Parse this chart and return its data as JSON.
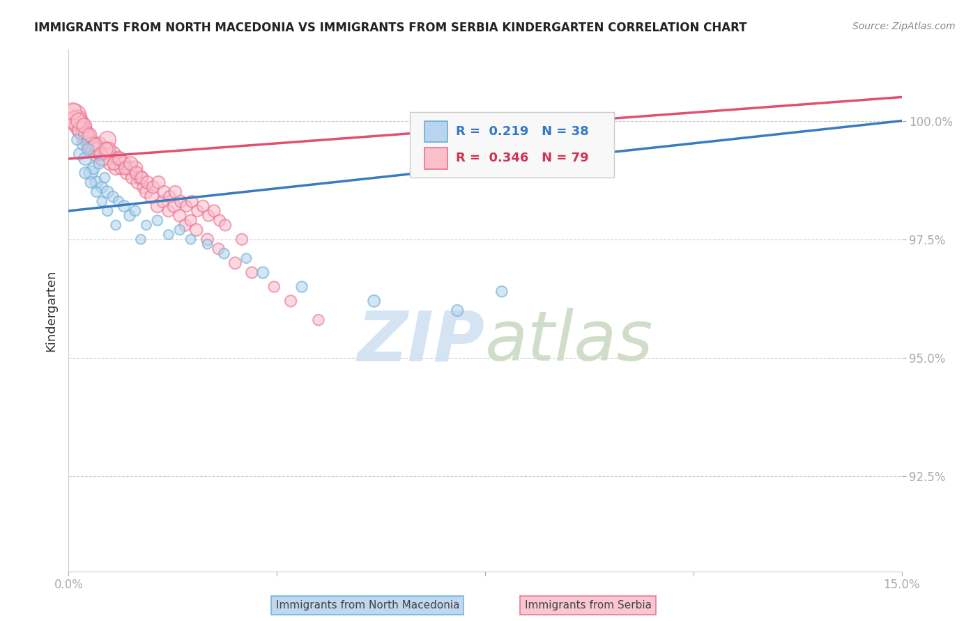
{
  "title": "IMMIGRANTS FROM NORTH MACEDONIA VS IMMIGRANTS FROM SERBIA KINDERGARTEN CORRELATION CHART",
  "source": "Source: ZipAtlas.com",
  "ylabel": "Kindergarten",
  "xlim": [
    0.0,
    15.0
  ],
  "ylim": [
    90.5,
    101.5
  ],
  "yticks": [
    92.5,
    95.0,
    97.5,
    100.0
  ],
  "ytick_labels": [
    "92.5%",
    "95.0%",
    "97.5%",
    "100.0%"
  ],
  "xticks": [
    0.0,
    3.75,
    7.5,
    11.25,
    15.0
  ],
  "xtick_labels": [
    "0.0%",
    "",
    "",
    "",
    "15.0%"
  ],
  "blue_face_color": "#b8d4ee",
  "blue_edge_color": "#6aaed6",
  "pink_face_color": "#f9c0cc",
  "pink_edge_color": "#e87090",
  "blue_line_color": "#3a7bbf",
  "pink_line_color": "#e05070",
  "background_color": "#ffffff",
  "grid_color": "#cccccc",
  "blue_line_x0": 0.0,
  "blue_line_y0": 98.1,
  "blue_line_x1": 15.0,
  "blue_line_y1": 100.0,
  "pink_line_x0": 0.0,
  "pink_line_y0": 99.2,
  "pink_line_x1": 15.0,
  "pink_line_y1": 100.5,
  "blue_scatter_x": [
    0.2,
    0.25,
    0.3,
    0.35,
    0.4,
    0.45,
    0.5,
    0.55,
    0.6,
    0.65,
    0.7,
    0.8,
    0.9,
    1.0,
    1.1,
    1.2,
    1.4,
    1.6,
    1.8,
    2.0,
    2.2,
    2.5,
    2.8,
    3.2,
    3.5,
    4.2,
    5.5,
    7.0,
    7.8,
    9.3,
    0.15,
    0.3,
    0.4,
    0.5,
    0.6,
    0.7,
    0.85,
    1.3
  ],
  "blue_scatter_y": [
    99.3,
    99.5,
    99.2,
    99.4,
    98.9,
    99.0,
    98.7,
    99.1,
    98.6,
    98.8,
    98.5,
    98.4,
    98.3,
    98.2,
    98.0,
    98.1,
    97.8,
    97.9,
    97.6,
    97.7,
    97.5,
    97.4,
    97.2,
    97.1,
    96.8,
    96.5,
    96.2,
    96.0,
    96.4,
    100.0,
    99.6,
    98.9,
    98.7,
    98.5,
    98.3,
    98.1,
    97.8,
    97.5
  ],
  "blue_scatter_size": [
    60,
    50,
    70,
    55,
    80,
    60,
    65,
    50,
    55,
    45,
    60,
    50,
    45,
    55,
    50,
    45,
    40,
    45,
    40,
    45,
    40,
    40,
    45,
    40,
    55,
    50,
    60,
    55,
    50,
    90,
    45,
    55,
    50,
    45,
    40,
    45,
    40,
    40
  ],
  "pink_scatter_x": [
    0.1,
    0.15,
    0.2,
    0.25,
    0.3,
    0.35,
    0.4,
    0.45,
    0.5,
    0.55,
    0.6,
    0.65,
    0.7,
    0.75,
    0.8,
    0.85,
    0.9,
    0.95,
    1.0,
    1.05,
    1.1,
    1.15,
    1.2,
    1.25,
    1.3,
    1.35,
    1.4,
    1.5,
    1.6,
    1.7,
    1.8,
    1.9,
    2.0,
    2.1,
    2.2,
    2.3,
    2.5,
    2.7,
    3.0,
    3.3,
    3.7,
    4.0,
    4.5,
    0.12,
    0.22,
    0.32,
    0.42,
    0.52,
    0.62,
    0.72,
    0.82,
    0.92,
    1.02,
    1.12,
    1.22,
    1.32,
    1.42,
    1.52,
    1.62,
    1.72,
    1.82,
    1.92,
    2.02,
    2.12,
    2.22,
    2.32,
    2.42,
    2.52,
    2.62,
    2.72,
    2.82,
    3.12,
    0.08,
    0.18,
    0.28,
    0.38,
    0.48,
    0.58,
    0.68
  ],
  "pink_scatter_size": [
    250,
    200,
    180,
    160,
    150,
    130,
    120,
    110,
    100,
    95,
    90,
    85,
    120,
    80,
    100,
    75,
    90,
    70,
    80,
    75,
    85,
    70,
    90,
    75,
    80,
    65,
    70,
    80,
    70,
    65,
    60,
    70,
    65,
    60,
    55,
    65,
    60,
    55,
    60,
    55,
    50,
    55,
    50,
    150,
    120,
    100,
    90,
    80,
    75,
    85,
    70,
    75,
    70,
    80,
    70,
    65,
    70,
    65,
    70,
    65,
    60,
    65,
    60,
    55,
    60,
    55,
    60,
    55,
    60,
    55,
    55,
    55,
    120,
    100,
    90,
    80,
    75,
    70,
    80
  ],
  "pink_scatter_y": [
    100.1,
    100.0,
    99.9,
    99.8,
    99.7,
    99.6,
    99.5,
    99.4,
    99.3,
    99.5,
    99.2,
    99.4,
    99.6,
    99.1,
    99.3,
    99.0,
    99.2,
    99.0,
    99.1,
    98.9,
    99.0,
    98.8,
    99.0,
    98.7,
    98.8,
    98.6,
    98.5,
    98.4,
    98.2,
    98.3,
    98.1,
    98.2,
    98.0,
    97.8,
    97.9,
    97.7,
    97.5,
    97.3,
    97.0,
    96.8,
    96.5,
    96.2,
    95.8,
    100.0,
    99.8,
    99.7,
    99.5,
    99.4,
    99.2,
    99.4,
    99.1,
    99.2,
    99.0,
    99.1,
    98.9,
    98.8,
    98.7,
    98.6,
    98.7,
    98.5,
    98.4,
    98.5,
    98.3,
    98.2,
    98.3,
    98.1,
    98.2,
    98.0,
    98.1,
    97.9,
    97.8,
    97.5,
    100.2,
    100.0,
    99.9,
    99.7,
    99.5,
    99.3,
    99.4
  ]
}
